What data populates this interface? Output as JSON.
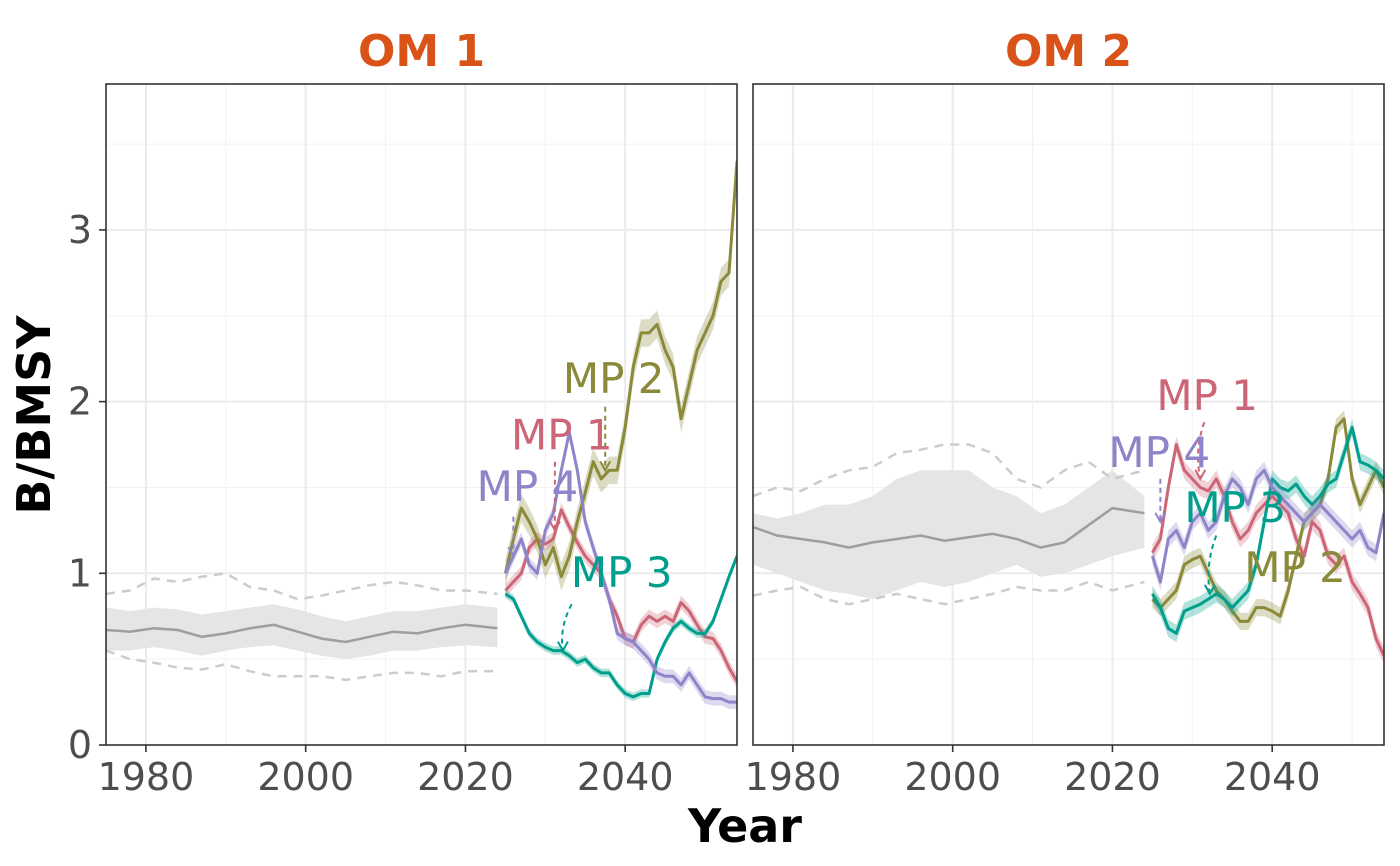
{
  "chart_data": {
    "type": "line",
    "x_label": "Year",
    "y_label": "B/BMSY",
    "x_ticks": [
      "1980",
      "2000",
      "2020",
      "2040"
    ],
    "y_ticks": [
      "0",
      "1",
      "2",
      "3"
    ],
    "xlim": [
      1975,
      2054
    ],
    "ylim": [
      0,
      3.85
    ],
    "colors": {
      "strip_title": "#D95319",
      "historical": "#9E9E9E",
      "historical_band": "#E5E5E5",
      "historical_bounds": "#CCCCCC",
      "MP 1": "#CC6677",
      "MP 2": "#8A8A3A",
      "MP 3": "#009E8C",
      "MP 4": "#8F84C9"
    },
    "panels": [
      {
        "title": "OM 1",
        "historical": {
          "years": [
            1975,
            1978,
            1981,
            1984,
            1987,
            1990,
            1993,
            1996,
            1999,
            2002,
            2005,
            2008,
            2011,
            2014,
            2017,
            2020,
            2024
          ],
          "median": [
            0.67,
            0.66,
            0.68,
            0.67,
            0.63,
            0.65,
            0.68,
            0.7,
            0.66,
            0.62,
            0.6,
            0.63,
            0.66,
            0.65,
            0.68,
            0.7,
            0.68
          ],
          "band_low": [
            0.55,
            0.55,
            0.57,
            0.55,
            0.52,
            0.55,
            0.57,
            0.58,
            0.55,
            0.52,
            0.5,
            0.52,
            0.55,
            0.55,
            0.57,
            0.58,
            0.57
          ],
          "band_high": [
            0.8,
            0.78,
            0.8,
            0.79,
            0.76,
            0.78,
            0.8,
            0.82,
            0.79,
            0.75,
            0.72,
            0.75,
            0.78,
            0.78,
            0.8,
            0.82,
            0.8
          ],
          "upper": [
            0.88,
            0.9,
            0.97,
            0.95,
            0.98,
            1.0,
            0.92,
            0.9,
            0.85,
            0.87,
            0.9,
            0.93,
            0.95,
            0.93,
            0.9,
            0.9,
            0.88
          ],
          "lower": [
            0.55,
            0.5,
            0.48,
            0.45,
            0.44,
            0.47,
            0.43,
            0.4,
            0.4,
            0.4,
            0.38,
            0.4,
            0.42,
            0.42,
            0.4,
            0.43,
            0.43
          ]
        },
        "series": [
          {
            "name": "MP 1",
            "x": [
              2025,
              2027,
              2028,
              2029,
              2030,
              2031,
              2032,
              2033,
              2034,
              2035,
              2036,
              2037,
              2038,
              2039,
              2040,
              2041,
              2042,
              2043,
              2044,
              2045,
              2046,
              2047,
              2048,
              2049,
              2050,
              2051,
              2052,
              2053,
              2054
            ],
            "y": [
              0.9,
              1.0,
              1.15,
              1.2,
              1.17,
              1.2,
              1.37,
              1.27,
              1.18,
              1.1,
              1.05,
              1.0,
              0.85,
              0.75,
              0.62,
              0.6,
              0.7,
              0.75,
              0.72,
              0.75,
              0.72,
              0.83,
              0.78,
              0.7,
              0.63,
              0.62,
              0.55,
              0.45,
              0.37
            ],
            "band": 0.04
          },
          {
            "name": "MP 2",
            "x": [
              2025,
              2026,
              2027,
              2028,
              2029,
              2030,
              2031,
              2032,
              2033,
              2034,
              2035,
              2036,
              2037,
              2038,
              2039,
              2040,
              2041,
              2042,
              2043,
              2044,
              2045,
              2046,
              2047,
              2048,
              2049,
              2050,
              2051,
              2052,
              2053,
              2054
            ],
            "y": [
              1.0,
              1.2,
              1.38,
              1.3,
              1.2,
              1.05,
              1.15,
              0.98,
              1.1,
              1.3,
              1.47,
              1.65,
              1.55,
              1.6,
              1.6,
              1.85,
              2.2,
              2.4,
              2.4,
              2.45,
              2.3,
              2.2,
              1.9,
              2.1,
              2.3,
              2.4,
              2.5,
              2.7,
              2.75,
              3.4
            ],
            "band": 0.08
          },
          {
            "name": "MP 3",
            "x": [
              2025,
              2026,
              2027,
              2028,
              2029,
              2030,
              2031,
              2032,
              2033,
              2034,
              2035,
              2036,
              2037,
              2038,
              2039,
              2040,
              2041,
              2042,
              2043,
              2044,
              2045,
              2046,
              2047,
              2048,
              2049,
              2050,
              2051,
              2052,
              2053,
              2054
            ],
            "y": [
              0.88,
              0.85,
              0.75,
              0.65,
              0.6,
              0.57,
              0.55,
              0.55,
              0.52,
              0.48,
              0.5,
              0.45,
              0.42,
              0.42,
              0.35,
              0.3,
              0.28,
              0.3,
              0.3,
              0.5,
              0.6,
              0.68,
              0.72,
              0.68,
              0.65,
              0.65,
              0.72,
              0.85,
              0.98,
              1.1
            ],
            "band": 0.025
          },
          {
            "name": "MP 4",
            "x": [
              2025,
              2026,
              2027,
              2028,
              2029,
              2030,
              2031,
              2032,
              2033,
              2034,
              2035,
              2036,
              2037,
              2038,
              2039,
              2040,
              2041,
              2042,
              2043,
              2044,
              2045,
              2046,
              2047,
              2048,
              2049,
              2050,
              2051,
              2052,
              2053,
              2054
            ],
            "y": [
              1.0,
              1.1,
              1.2,
              1.05,
              1.0,
              1.25,
              1.35,
              1.6,
              1.82,
              1.6,
              1.3,
              1.15,
              1.0,
              0.85,
              0.65,
              0.62,
              0.6,
              0.55,
              0.5,
              0.42,
              0.4,
              0.4,
              0.35,
              0.42,
              0.35,
              0.28,
              0.27,
              0.27,
              0.25,
              0.25
            ],
            "band": 0.04
          }
        ],
        "labels": [
          {
            "series": "MP 2",
            "text": "MP 2",
            "x": 2032.2,
            "y": 2.05,
            "arrow_from": [
              2037.5,
              1.97
            ],
            "arrow_to": [
              2037.5,
              1.6
            ]
          },
          {
            "series": "MP 1",
            "text": "MP 1",
            "x": 2025.7,
            "y": 1.72,
            "arrow_from": [
              2031.2,
              1.65
            ],
            "arrow_to": [
              2031.2,
              1.25
            ]
          },
          {
            "series": "MP 4",
            "text": "MP 4",
            "x": 2021.4,
            "y": 1.42,
            "arrow_from": [
              2026.0,
              1.33
            ],
            "arrow_to": [
              2026.0,
              1.1
            ]
          },
          {
            "series": "MP 3",
            "text": "MP 3",
            "x": 2033.2,
            "y": 0.92,
            "arrow_from": [
              2033.3,
              0.82
            ],
            "arrow_to": [
              2032.2,
              0.55
            ]
          }
        ]
      },
      {
        "title": "OM 2",
        "historical": {
          "years": [
            1975,
            1978,
            1981,
            1984,
            1987,
            1990,
            1993,
            1996,
            1999,
            2002,
            2005,
            2008,
            2011,
            2014,
            2017,
            2020,
            2024
          ],
          "median": [
            1.27,
            1.22,
            1.2,
            1.18,
            1.15,
            1.18,
            1.2,
            1.22,
            1.19,
            1.21,
            1.23,
            1.2,
            1.15,
            1.18,
            1.28,
            1.38,
            1.35
          ],
          "band_low": [
            1.05,
            1.0,
            0.95,
            0.9,
            0.88,
            0.85,
            0.9,
            0.95,
            0.92,
            0.95,
            1.0,
            1.05,
            0.98,
            1.0,
            1.05,
            1.1,
            1.15
          ],
          "band_high": [
            1.35,
            1.32,
            1.35,
            1.4,
            1.4,
            1.45,
            1.55,
            1.6,
            1.6,
            1.6,
            1.5,
            1.45,
            1.35,
            1.4,
            1.5,
            1.6,
            1.45
          ],
          "upper": [
            1.45,
            1.5,
            1.48,
            1.55,
            1.6,
            1.62,
            1.7,
            1.72,
            1.75,
            1.75,
            1.7,
            1.55,
            1.5,
            1.6,
            1.65,
            1.55,
            1.6
          ],
          "lower": [
            0.87,
            0.9,
            0.92,
            0.85,
            0.82,
            0.85,
            0.88,
            0.85,
            0.82,
            0.85,
            0.88,
            0.92,
            0.9,
            0.9,
            0.95,
            0.9,
            0.95
          ]
        },
        "series": [
          {
            "name": "MP 1",
            "x": [
              2025,
              2026,
              2027,
              2028,
              2029,
              2030,
              2031,
              2032,
              2033,
              2034,
              2035,
              2036,
              2037,
              2038,
              2039,
              2040,
              2041,
              2042,
              2043,
              2044,
              2045,
              2046,
              2047,
              2048,
              2049,
              2050,
              2051,
              2052,
              2053,
              2054
            ],
            "y": [
              1.12,
              1.2,
              1.5,
              1.75,
              1.6,
              1.55,
              1.5,
              1.48,
              1.55,
              1.45,
              1.3,
              1.2,
              1.25,
              1.35,
              1.4,
              1.45,
              1.4,
              1.35,
              1.2,
              1.1,
              1.3,
              1.25,
              1.1,
              1.05,
              1.1,
              0.95,
              0.88,
              0.8,
              0.62,
              0.52
            ],
            "band": 0.05
          },
          {
            "name": "MP 2",
            "x": [
              2025,
              2026,
              2027,
              2028,
              2029,
              2030,
              2031,
              2032,
              2033,
              2034,
              2035,
              2036,
              2037,
              2038,
              2039,
              2040,
              2041,
              2042,
              2043,
              2044,
              2045,
              2046,
              2047,
              2048,
              2049,
              2050,
              2051,
              2052,
              2053,
              2054
            ],
            "y": [
              0.85,
              0.8,
              0.85,
              0.9,
              1.05,
              1.08,
              1.1,
              1.0,
              0.9,
              0.85,
              0.78,
              0.72,
              0.72,
              0.8,
              0.8,
              0.78,
              0.75,
              0.9,
              1.1,
              1.3,
              1.35,
              1.4,
              1.55,
              1.85,
              1.9,
              1.55,
              1.4,
              1.5,
              1.6,
              1.5
            ],
            "band": 0.05
          },
          {
            "name": "MP 3",
            "x": [
              2025,
              2026,
              2027,
              2028,
              2029,
              2030,
              2031,
              2032,
              2033,
              2034,
              2035,
              2036,
              2037,
              2038,
              2039,
              2040,
              2041,
              2042,
              2043,
              2044,
              2045,
              2046,
              2047,
              2048,
              2049,
              2050,
              2051,
              2052,
              2053,
              2054
            ],
            "y": [
              0.88,
              0.8,
              0.68,
              0.65,
              0.78,
              0.8,
              0.82,
              0.85,
              0.88,
              0.85,
              0.8,
              0.85,
              0.9,
              1.05,
              1.3,
              1.55,
              1.5,
              1.48,
              1.52,
              1.45,
              1.4,
              1.45,
              1.52,
              1.55,
              1.7,
              1.85,
              1.65,
              1.63,
              1.6,
              1.55
            ],
            "band": 0.05
          },
          {
            "name": "MP 4",
            "x": [
              2025,
              2026,
              2027,
              2028,
              2029,
              2030,
              2031,
              2032,
              2033,
              2034,
              2035,
              2036,
              2037,
              2038,
              2039,
              2040,
              2041,
              2042,
              2043,
              2044,
              2045,
              2046,
              2047,
              2048,
              2049,
              2050,
              2051,
              2052,
              2053,
              2054
            ],
            "y": [
              1.1,
              0.95,
              1.2,
              1.25,
              1.15,
              1.3,
              1.35,
              1.25,
              1.3,
              1.45,
              1.55,
              1.5,
              1.4,
              1.55,
              1.6,
              1.5,
              1.45,
              1.4,
              1.35,
              1.3,
              1.35,
              1.4,
              1.35,
              1.3,
              1.25,
              1.2,
              1.25,
              1.15,
              1.12,
              1.35
            ],
            "band": 0.05
          }
        ],
        "labels": [
          {
            "series": "MP 1",
            "text": "MP 1",
            "x": 2025.5,
            "y": 1.95,
            "arrow_from": [
              2031.5,
              1.88
            ],
            "arrow_to": [
              2031.0,
              1.55
            ]
          },
          {
            "series": "MP 4",
            "text": "MP 4",
            "x": 2019.5,
            "y": 1.62,
            "arrow_from": [
              2026.0,
              1.55
            ],
            "arrow_to": [
              2026.0,
              1.3
            ]
          },
          {
            "series": "MP 3",
            "text": "MP 3",
            "x": 2029.0,
            "y": 1.3,
            "arrow_from": [
              2033.0,
              1.22
            ],
            "arrow_to": [
              2032.2,
              0.88
            ]
          },
          {
            "series": "MP 2",
            "text": "MP 2",
            "x": 2036.5,
            "y": 0.95,
            "arrow_from": [
              2036.0,
              0.98
            ],
            "arrow_to": [
              2036.0,
              0.98
            ]
          }
        ]
      }
    ]
  }
}
